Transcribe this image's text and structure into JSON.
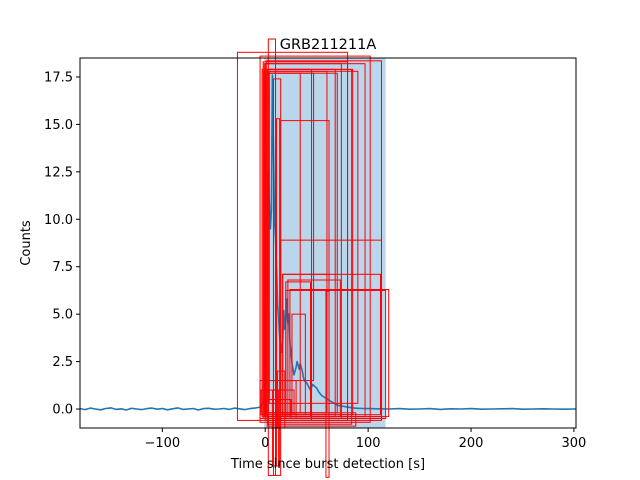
{
  "chart_data": {
    "type": "line",
    "title": "GRB211211A",
    "xlabel": "Time since burst detection [s]",
    "ylabel": "Counts",
    "xlim": [
      -180,
      302
    ],
    "ylim": [
      -1.0,
      18.5
    ],
    "x_ticks": [
      -100,
      0,
      100,
      200,
      300
    ],
    "x_tick_labels": [
      "−100",
      "0",
      "100",
      "200",
      "300"
    ],
    "y_ticks": [
      0.0,
      2.5,
      5.0,
      7.5,
      10.0,
      12.5,
      15.0,
      17.5
    ],
    "y_tick_labels": [
      "0.0",
      "2.5",
      "5.0",
      "7.5",
      "10.0",
      "12.5",
      "15.0",
      "17.5"
    ],
    "grid": false,
    "colors": {
      "series": "#1f77b4",
      "shade": "#bad6ea",
      "boxes": "#ff0000"
    },
    "shaded_interval": {
      "x": [
        -1,
        117
      ],
      "y": [
        -1.0,
        18.5
      ]
    },
    "series": [
      {
        "x": [
          -180,
          -175,
          -170,
          -165,
          -160,
          -155,
          -150,
          -145,
          -140,
          -135,
          -130,
          -125,
          -120,
          -115,
          -110,
          -105,
          -100,
          -95,
          -90,
          -85,
          -80,
          -75,
          -70,
          -65,
          -60,
          -55,
          -50,
          -45,
          -40,
          -35,
          -30,
          -25,
          -20,
          -15,
          -10,
          -5,
          -2,
          0,
          1,
          2,
          3,
          4,
          5,
          6,
          7,
          8,
          9,
          10,
          11,
          12,
          13,
          14,
          15,
          16,
          17,
          18,
          19,
          20,
          21,
          22,
          23,
          24,
          25,
          26,
          27,
          28,
          29,
          30,
          31,
          32,
          33,
          34,
          35,
          36,
          37,
          38,
          40,
          42,
          44,
          46,
          48,
          50,
          52,
          55,
          58,
          61,
          64,
          67,
          70,
          75,
          80,
          85,
          90,
          95,
          100,
          110,
          120,
          130,
          140,
          150,
          160,
          170,
          180,
          190,
          200,
          210,
          220,
          230,
          240,
          250,
          260,
          270,
          280,
          290,
          302
        ],
        "y": [
          0.02,
          -0.03,
          0.05,
          0.0,
          -0.04,
          0.03,
          0.06,
          -0.02,
          0.01,
          -0.05,
          0.04,
          0.0,
          -0.03,
          0.02,
          0.05,
          -0.01,
          0.03,
          -0.04,
          0.01,
          0.06,
          -0.02,
          0.0,
          0.03,
          -0.05,
          0.02,
          0.04,
          -0.01,
          0.0,
          0.03,
          -0.02,
          0.05,
          0.01,
          -0.03,
          0.02,
          0.05,
          0.1,
          0.3,
          1.0,
          3.0,
          7.0,
          12.5,
          10.9,
          9.5,
          10.5,
          17.6,
          13.5,
          10.0,
          9.0,
          7.5,
          5.5,
          4.8,
          3.9,
          3.3,
          3.0,
          3.6,
          5.2,
          4.2,
          4.6,
          5.8,
          4.5,
          5.0,
          3.5,
          3.0,
          2.4,
          2.1,
          1.8,
          2.0,
          2.2,
          2.5,
          2.3,
          2.1,
          2.4,
          2.2,
          2.0,
          1.7,
          1.5,
          1.4,
          1.2,
          1.0,
          1.3,
          1.2,
          1.1,
          0.9,
          0.7,
          0.6,
          0.5,
          0.4,
          0.3,
          0.2,
          0.15,
          0.1,
          0.06,
          0.04,
          0.03,
          0.02,
          0.01,
          0.0,
          0.02,
          -0.01,
          0.0,
          0.02,
          -0.02,
          0.01,
          0.0,
          0.02,
          -0.01,
          0.0,
          0.01,
          0.02,
          -0.01,
          0.0,
          0.01,
          0.0,
          -0.01,
          0.0
        ]
      }
    ],
    "red_boxes": [
      {
        "x": [
          -27,
          80
        ],
        "y": [
          -0.6,
          18.8
        ]
      },
      {
        "x": [
          -5,
          102
        ],
        "y": [
          -0.7,
          18.6
        ]
      },
      {
        "x": [
          -2,
          80
        ],
        "y": [
          -0.5,
          18.3
        ]
      },
      {
        "x": [
          -1,
          97
        ],
        "y": [
          -0.4,
          18.2
        ]
      },
      {
        "x": [
          0,
          74
        ],
        "y": [
          -0.5,
          18.2
        ]
      },
      {
        "x": [
          1,
          113
        ],
        "y": [
          -0.4,
          18.35
        ]
      },
      {
        "x": [
          2,
          85
        ],
        "y": [
          -0.3,
          17.9
        ]
      },
      {
        "x": [
          0,
          45
        ],
        "y": [
          -0.6,
          17.9
        ]
      },
      {
        "x": [
          -3,
          68
        ],
        "y": [
          -0.4,
          17.9
        ]
      },
      {
        "x": [
          3,
          84
        ],
        "y": [
          -0.8,
          17.9
        ]
      },
      {
        "x": [
          -1,
          60
        ],
        "y": [
          -0.2,
          17.8
        ]
      },
      {
        "x": [
          4,
          90
        ],
        "y": [
          0.3,
          17.8
        ]
      },
      {
        "x": [
          1,
          70
        ],
        "y": [
          -0.2,
          17.7
        ]
      },
      {
        "x": [
          1,
          34
        ],
        "y": [
          -0.2,
          17.7
        ]
      },
      {
        "x": [
          0,
          47
        ],
        "y": [
          1.5,
          17.7
        ]
      },
      {
        "x": [
          15,
          62
        ],
        "y": [
          -0.3,
          15.2
        ]
      },
      {
        "x": [
          15,
          113
        ],
        "y": [
          -0.6,
          8.9
        ]
      },
      {
        "x": [
          17,
          112
        ],
        "y": [
          -0.3,
          7.1
        ]
      },
      {
        "x": [
          17,
          62
        ],
        "y": [
          -0.4,
          7.1
        ]
      },
      {
        "x": [
          20,
          117
        ],
        "y": [
          -0.5,
          6.25
        ]
      },
      {
        "x": [
          24,
          120
        ],
        "y": [
          -0.4,
          6.3
        ]
      },
      {
        "x": [
          22,
          73
        ],
        "y": [
          -0.4,
          6.8
        ]
      },
      {
        "x": [
          20,
          44
        ],
        "y": [
          -0.4,
          6.7
        ]
      },
      {
        "x": [
          26,
          39
        ],
        "y": [
          -0.3,
          5.0
        ]
      },
      {
        "x": [
          -5,
          30
        ],
        "y": [
          -0.5,
          1.5
        ]
      },
      {
        "x": [
          -4,
          28
        ],
        "y": [
          -0.3,
          1.0
        ]
      },
      {
        "x": [
          0,
          25
        ],
        "y": [
          -0.5,
          0.5
        ]
      },
      {
        "x": [
          2,
          88
        ],
        "y": [
          -0.9,
          -0.2
        ]
      },
      {
        "x": [
          3,
          10
        ],
        "y": [
          -3.5,
          19.5
        ]
      },
      {
        "x": [
          11,
          14
        ],
        "y": [
          -3.0,
          15.3
        ]
      },
      {
        "x": [
          8,
          15
        ],
        "y": [
          -3.5,
          17.4
        ]
      },
      {
        "x": [
          59,
          62
        ],
        "y": [
          -3.6,
          6.2
        ]
      },
      {
        "x": [
          7,
          13
        ],
        "y": [
          -3.0,
          1.0
        ]
      },
      {
        "x": [
          12,
          19
        ],
        "y": [
          -1.0,
          2.0
        ]
      }
    ]
  }
}
